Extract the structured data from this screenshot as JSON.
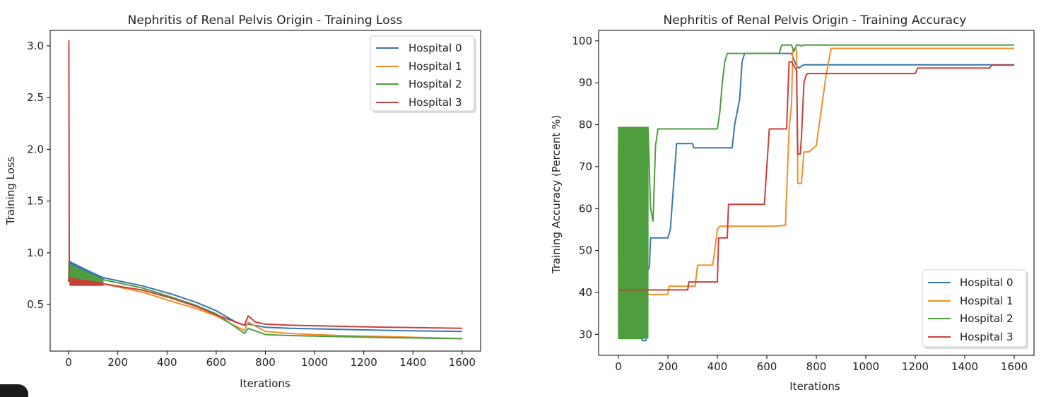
{
  "colors": {
    "hospital_0": "#3a76b0",
    "hospital_1": "#f28e2b",
    "hospital_2": "#4e9e3f",
    "hospital_3": "#c7413a"
  },
  "chart_data": [
    {
      "type": "line",
      "title": "Nephritis of Renal Pelvis Origin - Training Loss",
      "xlabel": "Iterations",
      "ylabel": "Training Loss",
      "xlim": [
        -75,
        1675
      ],
      "ylim": [
        0.05,
        3.15
      ],
      "xticks": [
        0,
        200,
        400,
        600,
        800,
        1000,
        1200,
        1400,
        1600
      ],
      "yticks": [
        0.5,
        1.0,
        1.5,
        2.0,
        2.5,
        3.0
      ],
      "ytick_labels": [
        "0.5",
        "1.0",
        "1.5",
        "2.0",
        "2.5",
        "3.0"
      ],
      "grid": false,
      "legend_position": "top-right",
      "series": [
        {
          "name": "Hospital 0",
          "color_key": "hospital_0",
          "x": [
            0,
            2,
            5,
            40,
            140,
            300,
            420,
            520,
            600,
            680,
            715,
            730,
            800,
            900,
            1100,
            1300,
            1600
          ],
          "y": [
            0.72,
            0.92,
            0.9,
            0.87,
            0.76,
            0.68,
            0.6,
            0.52,
            0.44,
            0.33,
            0.3,
            0.31,
            0.28,
            0.27,
            0.26,
            0.25,
            0.24
          ],
          "band": {
            "x": [
              5,
              140
            ],
            "low": [
              0.74,
              0.72
            ],
            "high": [
              0.92,
              0.76
            ]
          }
        },
        {
          "name": "Hospital 1",
          "color_key": "hospital_1",
          "x": [
            0,
            2,
            5,
            40,
            140,
            300,
            420,
            520,
            600,
            680,
            715,
            730,
            800,
            900,
            1100,
            1300,
            1600
          ],
          "y": [
            0.72,
            0.86,
            0.82,
            0.8,
            0.7,
            0.62,
            0.53,
            0.46,
            0.39,
            0.29,
            0.25,
            0.33,
            0.24,
            0.22,
            0.2,
            0.19,
            0.17
          ],
          "band": {
            "x": [
              5,
              140
            ],
            "low": [
              0.7,
              0.7
            ],
            "high": [
              0.86,
              0.72
            ]
          }
        },
        {
          "name": "Hospital 2",
          "color_key": "hospital_2",
          "x": [
            0,
            2,
            5,
            40,
            140,
            300,
            420,
            520,
            600,
            680,
            715,
            730,
            800,
            900,
            1100,
            1300,
            1600
          ],
          "y": [
            0.72,
            0.89,
            0.87,
            0.84,
            0.74,
            0.66,
            0.57,
            0.49,
            0.41,
            0.28,
            0.22,
            0.27,
            0.21,
            0.2,
            0.19,
            0.18,
            0.17
          ],
          "band": {
            "x": [
              5,
              140
            ],
            "low": [
              0.72,
              0.71
            ],
            "high": [
              0.89,
              0.74
            ]
          }
        },
        {
          "name": "Hospital 3",
          "color_key": "hospital_3",
          "x": [
            0,
            1,
            3,
            5,
            40,
            140,
            300,
            420,
            520,
            600,
            680,
            715,
            730,
            760,
            800,
            900,
            1100,
            1300,
            1600
          ],
          "y": [
            3.05,
            3.05,
            0.75,
            0.72,
            0.7,
            0.7,
            0.64,
            0.56,
            0.48,
            0.4,
            0.33,
            0.3,
            0.39,
            0.33,
            0.31,
            0.3,
            0.29,
            0.28,
            0.27
          ],
          "band": {
            "x": [
              5,
              140
            ],
            "low": [
              0.68,
              0.68
            ],
            "high": [
              0.76,
              0.71
            ]
          }
        }
      ]
    },
    {
      "type": "line",
      "title": "Nephritis of Renal Pelvis Origin - Training Accuracy",
      "xlabel": "Iterations",
      "ylabel": "Training Accuracy (Percent %)",
      "xlim": [
        -80,
        1680
      ],
      "ylim": [
        25,
        102.5
      ],
      "xticks": [
        0,
        200,
        400,
        600,
        800,
        1000,
        1200,
        1400,
        1600
      ],
      "yticks": [
        30,
        40,
        50,
        60,
        70,
        80,
        90,
        100
      ],
      "ytick_labels": [
        "30",
        "40",
        "50",
        "60",
        "70",
        "80",
        "90",
        "100"
      ],
      "grid": false,
      "legend_position": "bottom-right",
      "series": [
        {
          "name": "Hospital 0",
          "color_key": "hospital_0",
          "x": [
            0,
            95,
            96,
            112,
            115,
            125,
            130,
            200,
            210,
            235,
            300,
            305,
            385,
            390,
            460,
            470,
            490,
            500,
            510,
            520,
            660,
            680,
            700,
            720,
            730,
            740,
            750,
            1500,
            1600
          ],
          "y": [
            47,
            29,
            28.5,
            28.5,
            45,
            46,
            53,
            53,
            55,
            75.5,
            75.5,
            74.5,
            74.5,
            74.5,
            74.5,
            80,
            86,
            95,
            97,
            97,
            97,
            97,
            97,
            94,
            93.5,
            94,
            94.3,
            94.3,
            94.3
          ],
          "band": {
            "x": [
              0,
              110
            ],
            "low": [
              29,
              29
            ],
            "high": [
              72,
              50
            ]
          }
        },
        {
          "name": "Hospital 1",
          "color_key": "hospital_1",
          "x": [
            0,
            90,
            92,
            200,
            205,
            310,
            320,
            380,
            385,
            400,
            410,
            440,
            450,
            630,
            675,
            690,
            700,
            705,
            720,
            725,
            740,
            750,
            770,
            780,
            800,
            840,
            860,
            1600
          ],
          "y": [
            48,
            40,
            39.5,
            39.5,
            41.5,
            41.5,
            46.5,
            46.5,
            48,
            55,
            55.8,
            55.8,
            55.8,
            55.8,
            56,
            79,
            85,
            98,
            98,
            66,
            66,
            73.5,
            73.5,
            74,
            75,
            92,
            98.2,
            98.2
          ],
          "band": {
            "x": [
              0,
              90
            ],
            "low": [
              29,
              39
            ],
            "high": [
              74,
              60
            ]
          }
        },
        {
          "name": "Hospital 2",
          "color_key": "hospital_2",
          "x": [
            0,
            100,
            110,
            120,
            130,
            140,
            150,
            160,
            170,
            380,
            400,
            410,
            420,
            430,
            440,
            650,
            660,
            700,
            710,
            720,
            730,
            740,
            750,
            1600
          ],
          "y": [
            29,
            29,
            79,
            79,
            60,
            57,
            75,
            79,
            79,
            79,
            79,
            83,
            90,
            95,
            97,
            97,
            99,
            99,
            97.5,
            99,
            99,
            98.8,
            99,
            99
          ],
          "band": {
            "x": [
              0,
              120
            ],
            "low": [
              29,
              29
            ],
            "high": [
              79.5,
              79.5
            ]
          }
        },
        {
          "name": "Hospital 3",
          "color_key": "hospital_3",
          "x": [
            0,
            200,
            210,
            280,
            285,
            350,
            360,
            400,
            405,
            440,
            445,
            460,
            465,
            590,
            600,
            610,
            630,
            680,
            690,
            700,
            710,
            720,
            725,
            735,
            740,
            750,
            760,
            770,
            1200,
            1210,
            1500,
            1510,
            1600
          ],
          "y": [
            40.6,
            40.6,
            40.6,
            40.6,
            42.5,
            42.5,
            42.5,
            42.5,
            53,
            53,
            61,
            61,
            61,
            61,
            70,
            79,
            79,
            79,
            95,
            95,
            94,
            93,
            73,
            73,
            77,
            90,
            92,
            92.2,
            92.2,
            93.5,
            93.5,
            94.2,
            94.2
          ]
        }
      ]
    }
  ]
}
